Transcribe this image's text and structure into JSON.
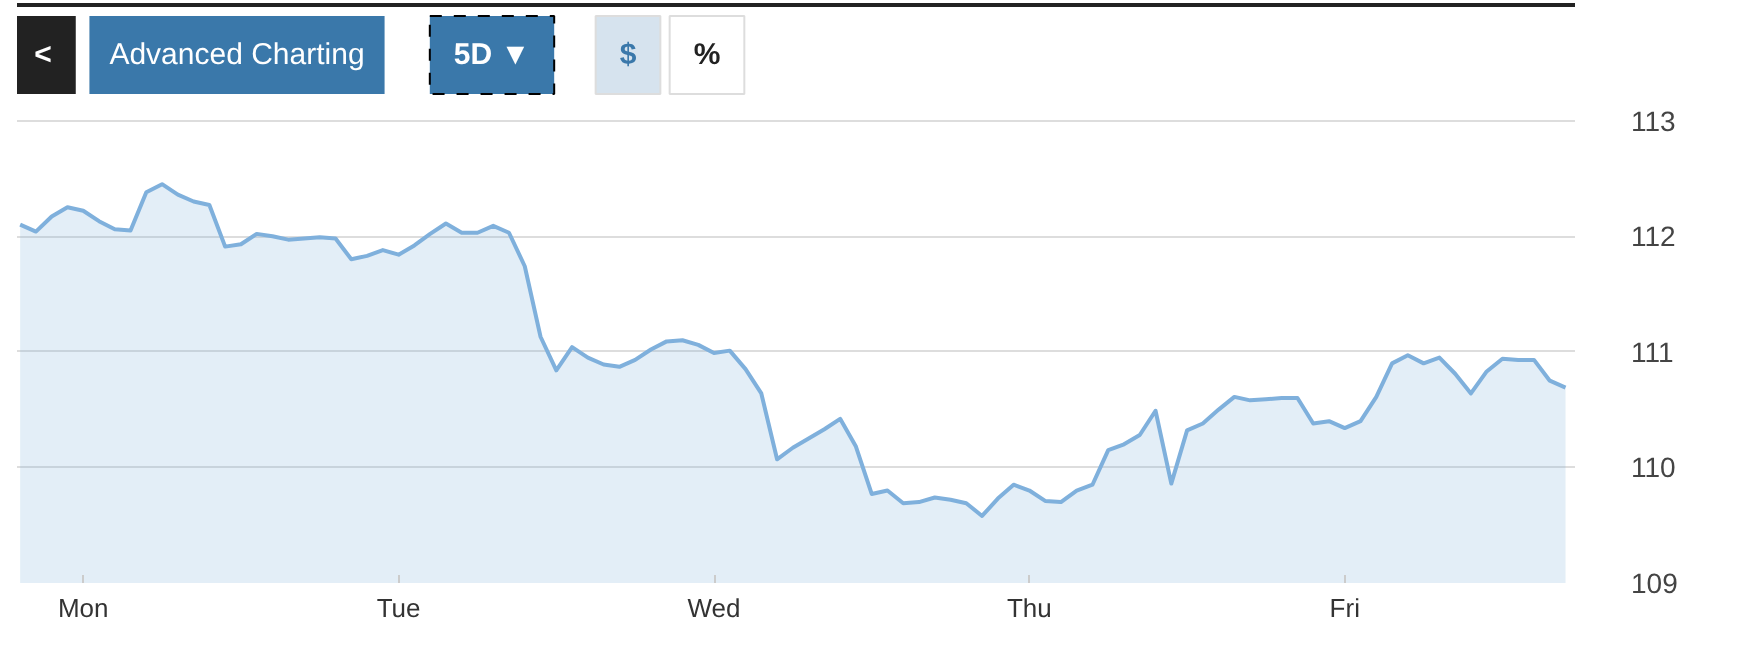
{
  "chart_data": {
    "type": "area",
    "categories": [
      null,
      null,
      null,
      null,
      "Mon",
      null,
      null,
      null,
      null,
      null,
      null,
      null,
      null,
      null,
      null,
      null,
      null,
      null,
      null,
      null,
      null,
      null,
      null,
      null,
      "Tue",
      null,
      null,
      null,
      null,
      null,
      null,
      null,
      null,
      null,
      null,
      null,
      null,
      null,
      null,
      null,
      null,
      null,
      null,
      null,
      "Wed",
      null,
      null,
      null,
      null,
      null,
      null,
      null,
      null,
      null,
      null,
      null,
      null,
      null,
      null,
      null,
      null,
      null,
      null,
      null,
      "Thu",
      null,
      null,
      null,
      null,
      null,
      null,
      null,
      null,
      null,
      null,
      null,
      null,
      null,
      null,
      null,
      null,
      null,
      null,
      null,
      "Fri",
      null,
      null,
      null,
      null,
      null,
      null,
      null,
      null,
      null,
      null,
      null,
      null,
      null,
      null
    ],
    "series": [
      {
        "color": "#7fb0dc",
        "values": [
          112.1,
          112.04,
          112.17,
          112.25,
          112.22,
          112.13,
          112.06,
          112.05,
          112.38,
          112.45,
          112.36,
          112.3,
          112.27,
          111.91,
          111.93,
          112.02,
          112.0,
          111.97,
          111.98,
          111.99,
          111.98,
          111.8,
          111.83,
          111.88,
          111.84,
          111.92,
          112.02,
          112.11,
          112.03,
          112.03,
          112.09,
          112.03,
          111.74,
          111.13,
          110.84,
          111.04,
          110.95,
          110.89,
          110.87,
          110.93,
          111.02,
          111.09,
          111.1,
          111.06,
          110.99,
          111.01,
          110.85,
          110.64,
          110.07,
          110.17,
          110.25,
          110.33,
          110.42,
          110.18,
          109.77,
          109.8,
          109.69,
          109.7,
          109.74,
          109.72,
          109.69,
          109.58,
          109.73,
          109.85,
          109.8,
          109.71,
          109.7,
          109.8,
          109.85,
          110.15,
          110.2,
          110.28,
          110.49,
          109.86,
          110.32,
          110.38,
          110.5,
          110.61,
          110.58,
          110.59,
          110.6,
          110.6,
          110.38,
          110.4,
          110.34,
          110.4,
          110.61,
          110.9,
          110.97,
          110.9,
          110.95,
          110.81,
          110.64,
          110.83,
          110.94,
          110.93,
          110.93,
          110.75,
          110.69
        ]
      }
    ],
    "ylim": [
      109,
      114
    ],
    "yticks": [
      109,
      110,
      111,
      112,
      113
    ],
    "grid": "y",
    "annotations": [
      "<",
      "Advanced Charting",
      "5D ▼",
      "$",
      "%"
    ]
  }
}
